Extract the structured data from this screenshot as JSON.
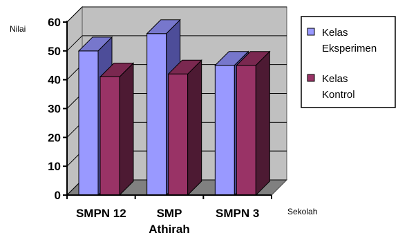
{
  "chart_data": {
    "type": "bar",
    "three_d": true,
    "categories": [
      [
        "SMPN 12"
      ],
      [
        "SMP",
        "Athirah"
      ],
      [
        "SMPN 3"
      ]
    ],
    "series": [
      {
        "name": [
          "Kelas",
          "Eksperimen"
        ],
        "values": [
          50,
          56,
          45
        ],
        "color": "#9999ff",
        "side_color": "#4d4d99",
        "top_color": "#7777cc"
      },
      {
        "name": [
          "Kelas",
          "Kontrol"
        ],
        "values": [
          41,
          42,
          45
        ],
        "color": "#993366",
        "side_color": "#4d1a33",
        "top_color": "#7a2850"
      }
    ],
    "xlabel": "Sekolah",
    "ylabel": "Nilai",
    "ylim": [
      0,
      60
    ],
    "yticks": [
      0,
      10,
      20,
      30,
      40,
      50,
      60
    ],
    "grid": true,
    "legend_position": "right",
    "colors": {
      "wall": "#c0c0c0",
      "floor": "#808080",
      "grid": "#000000"
    }
  }
}
